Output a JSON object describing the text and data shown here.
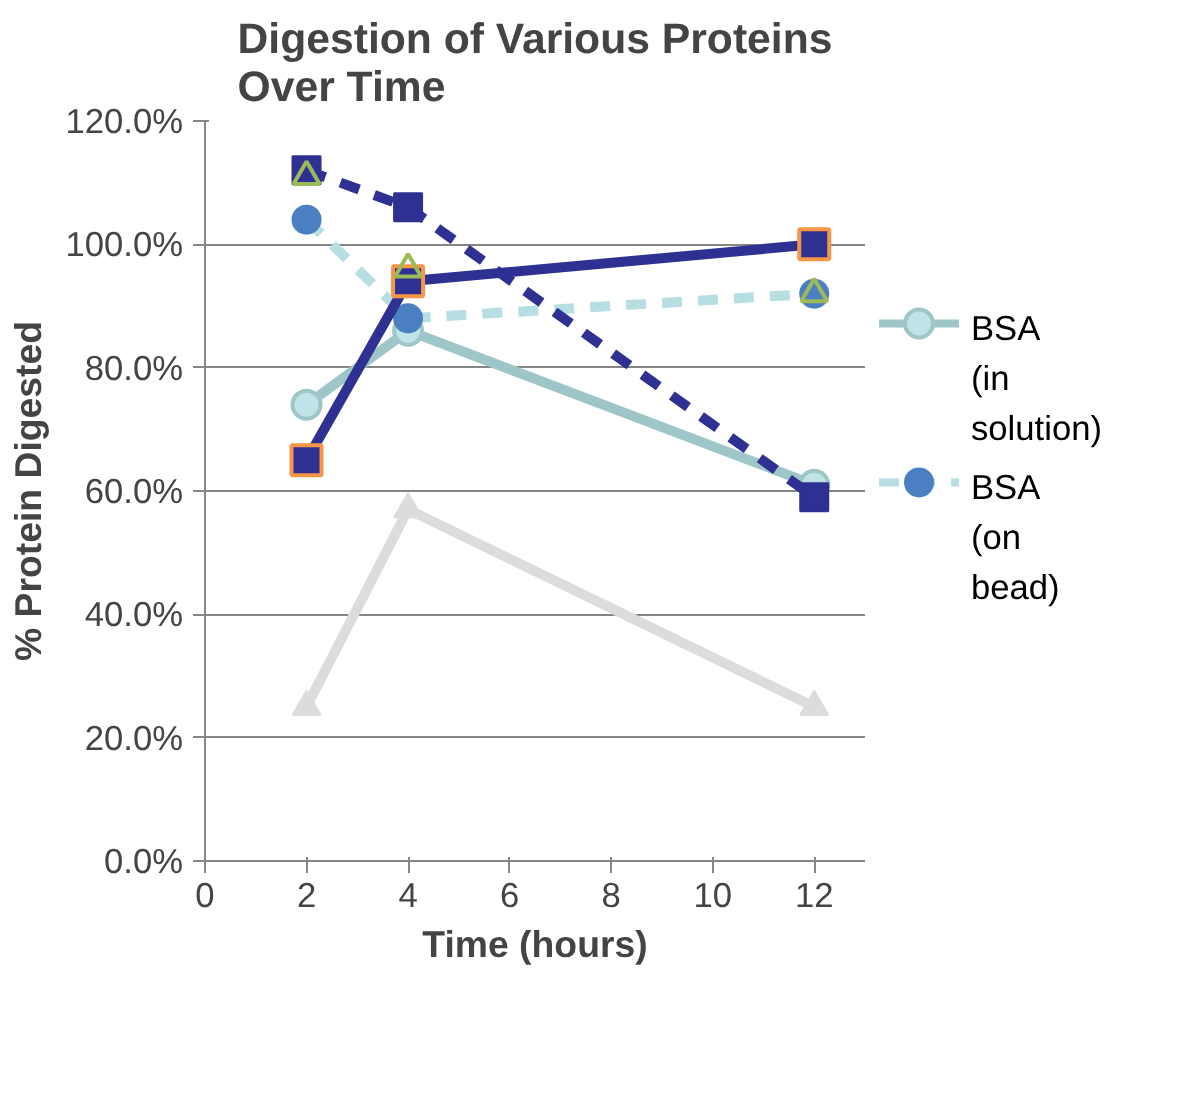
{
  "chart_data": {
    "type": "line",
    "title": "Digestion of Various Proteins Over Time",
    "xlabel": "Time (hours)",
    "ylabel": "% Protein Digested",
    "x": [
      2,
      4,
      12
    ],
    "xlim": [
      0,
      13
    ],
    "xticks": [
      0,
      2,
      4,
      6,
      8,
      10,
      12
    ],
    "ylim": [
      0,
      120
    ],
    "yticks": [
      {
        "value": 0,
        "label": "0.0%"
      },
      {
        "value": 20,
        "label": "20.0%"
      },
      {
        "value": 40,
        "label": "40.0%"
      },
      {
        "value": 60,
        "label": "60.0%"
      },
      {
        "value": 80,
        "label": "80.0%"
      },
      {
        "value": 100,
        "label": "100.0%"
      },
      {
        "value": 120,
        "label": "120.0%"
      }
    ],
    "grid": "y",
    "legend": "right",
    "series": [
      {
        "color": "#dcdcdc",
        "values": [
          25,
          57,
          25
        ],
        "marker": "triangle",
        "line_style": "solid"
      },
      {
        "name": "BSA (in solution)",
        "color": "#9ec6c8",
        "values": [
          74,
          86,
          61
        ],
        "marker": "circle",
        "line_style": "solid"
      },
      {
        "name": "BSA (on bead)",
        "color": "#4a7fc1",
        "values": [
          104,
          88,
          92
        ],
        "marker": "circle",
        "line_style": "dashed"
      },
      {
        "color": "#2e3192",
        "values": [
          65,
          94,
          100
        ],
        "marker": "square",
        "line_style": "solid"
      },
      {
        "color": "#2e3192",
        "values": [
          112,
          106,
          59
        ],
        "marker": "square",
        "line_style": "dashed"
      },
      {
        "color": "#9bbb59",
        "values": [
          111,
          96,
          92
        ],
        "type": "scatter",
        "marker": "triangle"
      }
    ]
  }
}
